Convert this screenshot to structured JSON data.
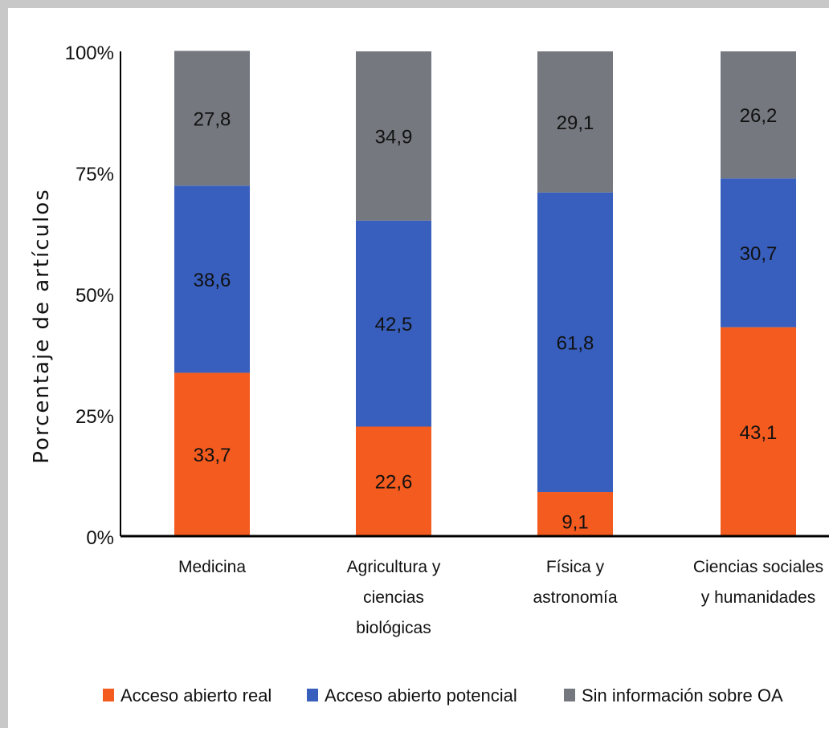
{
  "chart_data": {
    "type": "bar",
    "stacked": true,
    "ylabel": "Porcentaje de artículos",
    "ylim": [
      0,
      100
    ],
    "yticks": [
      "0%",
      "25%",
      "50%",
      "75%",
      "100%"
    ],
    "categories": [
      [
        "Medicina"
      ],
      [
        "Agricultura y",
        "ciencias",
        "biológicas"
      ],
      [
        "Física y",
        "astronomía"
      ],
      [
        "Ciencias sociales",
        "y humanidades"
      ]
    ],
    "series": [
      {
        "name": "Acceso abierto real",
        "color": "#f45b1f",
        "values": [
          33.7,
          22.6,
          9.1,
          43.1
        ],
        "labels": [
          "33,7",
          "22,6",
          "9,1",
          "43,1"
        ]
      },
      {
        "name": "Acceso abierto potencial",
        "color": "#385fbd",
        "values": [
          38.6,
          42.5,
          61.8,
          30.7
        ],
        "labels": [
          "38,6",
          "42,5",
          "61,8",
          "30,7"
        ]
      },
      {
        "name": "Sin información sobre OA",
        "color": "#75787f",
        "values": [
          27.8,
          34.9,
          29.1,
          26.2
        ],
        "labels": [
          "27,8",
          "34,9",
          "29,1",
          "26,2"
        ]
      }
    ],
    "legend_position": "bottom",
    "grid": false
  }
}
